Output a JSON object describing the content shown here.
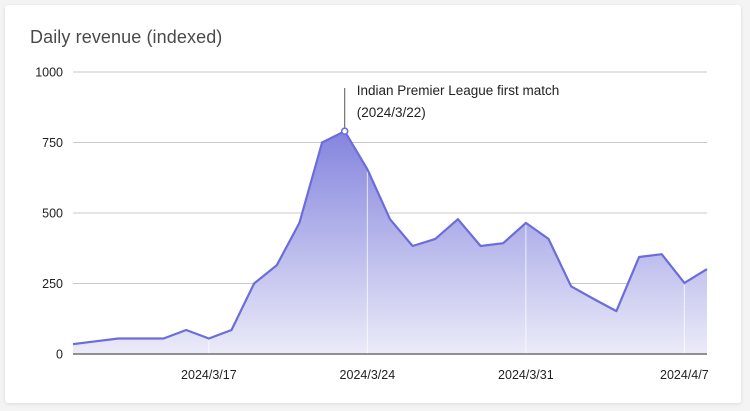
{
  "card": {
    "title": "Daily revenue (indexed)"
  },
  "annotation": {
    "line1": "Indian Premier League first match",
    "line2": "(2024/3/22)"
  },
  "colors": {
    "line": "#6c6cdb",
    "fill_top": "#8484de",
    "fill_bottom": "#ebebf9",
    "grid": "#c8c8c8",
    "axis": "#555555"
  },
  "chart_data": {
    "type": "area",
    "title": "Daily revenue (indexed)",
    "xlabel": "",
    "ylabel": "",
    "ylim": [
      0,
      1000
    ],
    "yticks": [
      0,
      250,
      500,
      750,
      1000
    ],
    "xtick_labels": [
      "2024/3/17",
      "2024/3/24",
      "2024/3/31",
      "2024/4/7"
    ],
    "xtick_indices": [
      6,
      13,
      20,
      27
    ],
    "grid": true,
    "legend": "none",
    "x": [
      "2024/3/11",
      "2024/3/12",
      "2024/3/13",
      "2024/3/14",
      "2024/3/15",
      "2024/3/16",
      "2024/3/17",
      "2024/3/18",
      "2024/3/19",
      "2024/3/20",
      "2024/3/21",
      "2024/3/22",
      "2024/3/23",
      "2024/3/24",
      "2024/3/25",
      "2024/3/26",
      "2024/3/27",
      "2024/3/28",
      "2024/3/29",
      "2024/3/30",
      "2024/3/31",
      "2024/4/1",
      "2024/4/2",
      "2024/4/3",
      "2024/4/4",
      "2024/4/5",
      "2024/4/6",
      "2024/4/7",
      "2024/4/8"
    ],
    "series": [
      {
        "name": "Daily revenue (indexed)",
        "values": [
          35,
          45,
          55,
          55,
          55,
          85,
          55,
          85,
          250,
          315,
          465,
          750,
          790,
          655,
          478,
          383,
          408,
          478,
          383,
          393,
          465,
          408,
          240,
          195,
          152,
          344,
          354,
          252,
          301
        ]
      }
    ],
    "annotations": [
      {
        "index": 12,
        "text": "Indian Premier League first match (2024/3/22)"
      }
    ]
  }
}
